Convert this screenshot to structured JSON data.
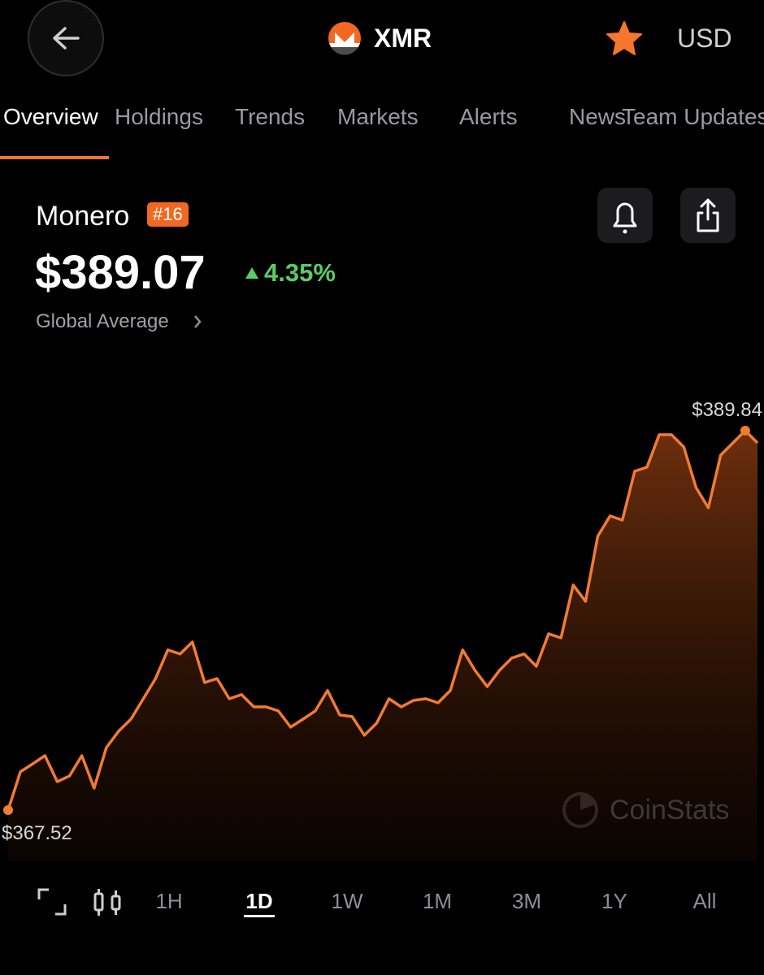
{
  "header": {
    "title": "XMR",
    "currency": "USD"
  },
  "tabs": [
    "Overview",
    "Holdings",
    "Trends",
    "Markets",
    "Alerts",
    "News",
    "Team Updates"
  ],
  "coin": {
    "name": "Monero",
    "rank": "#16",
    "price": "$389.07",
    "change": "4.35%",
    "source": "Global Average"
  },
  "chart_data": {
    "type": "line",
    "color": "#f27b32",
    "values": [
      367.52,
      369.77,
      370.24,
      370.72,
      369.19,
      369.53,
      370.72,
      368.81,
      371.2,
      372.16,
      372.87,
      374.07,
      375.26,
      376.94,
      376.7,
      377.41,
      375.02,
      375.26,
      374.07,
      374.31,
      373.59,
      373.59,
      373.35,
      372.4,
      372.87,
      373.35,
      374.55,
      373.11,
      373.02,
      371.92,
      372.63,
      374.07,
      373.59,
      373.97,
      374.07,
      373.83,
      374.55,
      376.94,
      375.74,
      374.78,
      375.74,
      376.46,
      376.7,
      375.98,
      377.89,
      377.65,
      380.76,
      379.8,
      383.63,
      384.82,
      384.58,
      387.45,
      387.69,
      389.6,
      389.6,
      388.88,
      386.49,
      385.3,
      388.4,
      389.12,
      389.84,
      389.12
    ],
    "value_labels": [
      "$367.52",
      null,
      null,
      null,
      null,
      null,
      null,
      null,
      null,
      null,
      null,
      null,
      null,
      null,
      null,
      null,
      null,
      null,
      null,
      null,
      null,
      null,
      null,
      null,
      null,
      null,
      null,
      null,
      null,
      null,
      null,
      null,
      null,
      null,
      null,
      null,
      null,
      null,
      null,
      null,
      null,
      null,
      null,
      null,
      null,
      null,
      null,
      null,
      null,
      null,
      null,
      null,
      null,
      null,
      null,
      null,
      null,
      null,
      null,
      null,
      "$389.84",
      null
    ]
  },
  "watermark": "CoinStats",
  "ranges": [
    "1H",
    "1D",
    "1W",
    "1M",
    "3M",
    "1Y",
    "All"
  ],
  "selected_range": "1D"
}
